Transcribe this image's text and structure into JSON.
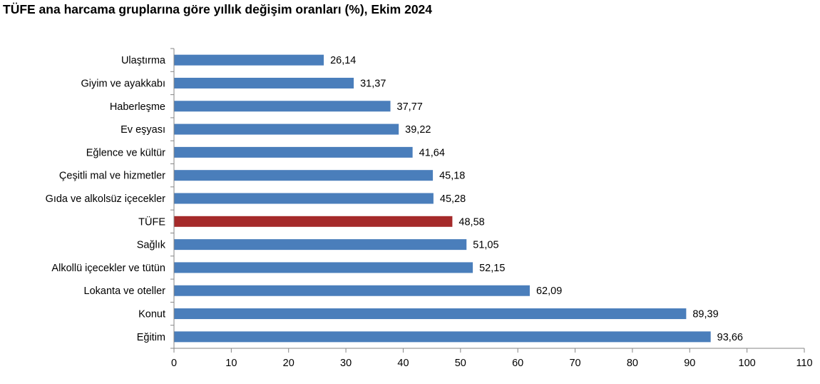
{
  "chart_data": {
    "type": "bar",
    "orientation": "horizontal",
    "title": "TÜFE ana harcama gruplarına göre yıllık değişim oranları (%), Ekim 2024",
    "categories": [
      "Ulaştırma",
      "Giyim ve ayakkabı",
      "Haberleşme",
      "Ev eşyası",
      "Eğlence ve kültür",
      "Çeşitli mal ve hizmetler",
      "Gıda ve alkolsüz içecekler",
      "TÜFE",
      "Sağlık",
      "Alkollü içecekler ve tütün",
      "Lokanta ve oteller",
      "Konut",
      "Eğitim"
    ],
    "values": [
      26.14,
      31.37,
      37.77,
      39.22,
      41.64,
      45.18,
      45.28,
      48.58,
      51.05,
      52.15,
      62.09,
      89.39,
      93.66
    ],
    "value_labels": [
      "26,14",
      "31,37",
      "37,77",
      "39,22",
      "41,64",
      "45,18",
      "45,28",
      "48,58",
      "51,05",
      "52,15",
      "62,09",
      "89,39",
      "93,66"
    ],
    "highlight_category": "TÜFE",
    "xlim": [
      0,
      110
    ],
    "xticks": [
      0,
      10,
      20,
      30,
      40,
      50,
      60,
      70,
      80,
      90,
      100,
      110
    ],
    "xlabel": "",
    "ylabel": "",
    "grid": false,
    "legend": "none",
    "colors": {
      "bar": "#4a7ebb",
      "highlight": "#a52a2a",
      "axis": "#868686",
      "text": "#000000"
    }
  }
}
